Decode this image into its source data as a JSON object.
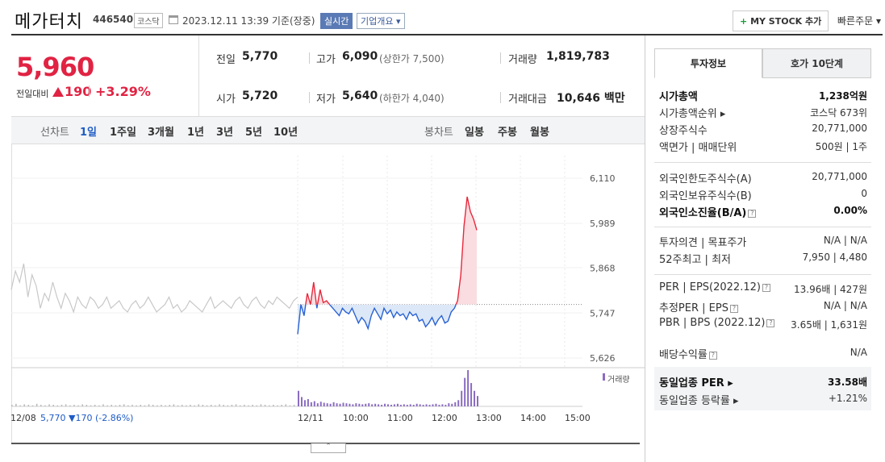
{
  "header": {
    "stock_name": "메가터치",
    "stock_code": "446540",
    "market": "코스닥",
    "timestamp": "2023.12.11 13:39 기준(장중)",
    "realtime_badge": "실시간",
    "company_info_button": "기업개요 ▾",
    "mystock_plus": "+",
    "mystock_button": "MY STOCK 추가",
    "quick_order_button": "빠른주문 ▾"
  },
  "price": {
    "current": "5,960",
    "change_label": "전일대비",
    "change_value": "190",
    "change_pct": "+3.29%"
  },
  "stats": {
    "prev_close_label": "전일",
    "prev_close": "5,770",
    "open_label": "시가",
    "open": "5,720",
    "high_label": "고가",
    "high": "6,090",
    "upper_limit": "(상한가 7,500)",
    "low_label": "저가",
    "low": "5,640",
    "lower_limit": "(하한가 4,040)",
    "volume_label": "거래량",
    "volume": "1,819,783",
    "amount_label": "거래대금",
    "amount": "10,646 백만"
  },
  "period_bar": {
    "line_label": "선차트",
    "line_periods": [
      "1일",
      "1주일",
      "3개월",
      "1년",
      "3년",
      "5년",
      "10년"
    ],
    "active_period": "1일",
    "candle_label": "봉차트",
    "candle_periods": [
      "일봉",
      "주봉",
      "월봉"
    ]
  },
  "chart_data": {
    "type": "line",
    "y_ticks": [
      "6,110",
      "5,989",
      "5,868",
      "5,747",
      "5,626"
    ],
    "ylim": [
      5626,
      6110
    ],
    "baseline": 5770,
    "x_ticks": [
      "12/11",
      "10:00",
      "11:00",
      "12:00",
      "13:00",
      "14:00",
      "15:00"
    ],
    "prev_day_label": "12/08",
    "prev_day_close": "5,770",
    "prev_day_change": "▼170 (-2.86%)",
    "volume_legend": "거래량",
    "colors": {
      "up": "#e8283c",
      "down": "#2a62d4",
      "prev": "#c8c8c8",
      "volume_prev": "#b8b8b8",
      "volume_today": "#8a6cc2",
      "fill_down": "#dce8f7",
      "fill_up": "#f9dde0"
    },
    "series": [
      {
        "values_prev_day": [
          5810,
          5860,
          5830,
          5880,
          5790,
          5850,
          5820,
          5760,
          5800,
          5780,
          5830,
          5790,
          5760,
          5800,
          5780,
          5750,
          5790,
          5770,
          5760,
          5790,
          5780,
          5760,
          5770,
          5790,
          5760,
          5770,
          5780,
          5760,
          5750,
          5770,
          5780,
          5760,
          5770,
          5790,
          5770,
          5750,
          5760,
          5770,
          5790,
          5760,
          5770,
          5750,
          5760,
          5780,
          5770,
          5760,
          5750,
          5770,
          5790,
          5760,
          5770,
          5780,
          5770,
          5760,
          5780,
          5790,
          5770,
          5760,
          5780,
          5790,
          5770,
          5760,
          5780,
          5770,
          5790,
          5780,
          5770,
          5760,
          5780,
          5790
        ],
        "values_today": [
          5690,
          5770,
          5740,
          5800,
          5770,
          5830,
          5760,
          5810,
          5775,
          5780,
          5770,
          5760,
          5750,
          5740,
          5760,
          5750,
          5745,
          5760,
          5740,
          5720,
          5735,
          5725,
          5705,
          5740,
          5760,
          5745,
          5730,
          5760,
          5745,
          5755,
          5735,
          5750,
          5740,
          5745,
          5730,
          5750,
          5740,
          5745,
          5725,
          5730,
          5710,
          5720,
          5735,
          5715,
          5730,
          5740,
          5720,
          5725,
          5750,
          5760,
          5780,
          5850,
          5980,
          6060,
          6020,
          6000,
          5970
        ]
      }
    ],
    "volume_prev_day": [
      3,
      5,
      2,
      4,
      3,
      2,
      5,
      3,
      2,
      4,
      3,
      2,
      3,
      4,
      2,
      3,
      2,
      4,
      3,
      2,
      3,
      2,
      4,
      2,
      3,
      2,
      3,
      4,
      2,
      3,
      2,
      3,
      2,
      4,
      3,
      2,
      3,
      2,
      3,
      4,
      2,
      3,
      2,
      3,
      2,
      4,
      3,
      2,
      3,
      2,
      4,
      3,
      2,
      3,
      4,
      2,
      3,
      2,
      3,
      2,
      4,
      3,
      2,
      3,
      2,
      3,
      4,
      2,
      3,
      2
    ],
    "volume_today": [
      30,
      18,
      12,
      14,
      8,
      10,
      6,
      9,
      7,
      6,
      5,
      8,
      6,
      5,
      7,
      6,
      5,
      4,
      6,
      5,
      4,
      5,
      6,
      4,
      5,
      4,
      3,
      5,
      4,
      3,
      4,
      5,
      3,
      4,
      3,
      4,
      3,
      5,
      4,
      3,
      4,
      3,
      4,
      5,
      3,
      4,
      3,
      6,
      5,
      8,
      12,
      30,
      55,
      70,
      45,
      30,
      20
    ]
  },
  "right_panel": {
    "tab_investment": "투자정보",
    "tab_orderbook": "호가 10단계",
    "rows_1": [
      {
        "label": "시가총액",
        "value": "1,238억원",
        "bold": true
      },
      {
        "label": "시가총액순위 ▸",
        "value": "코스닥 673위"
      },
      {
        "label": "상장주식수",
        "value": "20,771,000"
      },
      {
        "label": "액면가 | 매매단위",
        "value": "500원 | 1주"
      }
    ],
    "rows_2": [
      {
        "label": "외국인한도주식수(A)",
        "value": "20,771,000"
      },
      {
        "label": "외국인보유주식수(B)",
        "value": "0"
      },
      {
        "label": "외국인소진율(B/A)",
        "value": "0.00%",
        "bold": true
      }
    ],
    "rows_3": [
      {
        "label": "투자의견 | 목표주가",
        "value": "N/A | N/A"
      },
      {
        "label": "52주최고 | 최저",
        "value": "7,950 | 4,480"
      }
    ],
    "rows_4": [
      {
        "label": "PER | EPS(2022.12)",
        "value": "13.96배 | 427원"
      },
      {
        "label": "추정PER | EPS",
        "value": "N/A | N/A"
      },
      {
        "label": "PBR | BPS (2022.12)",
        "value": "3.65배 | 1,631원"
      },
      {
        "label": "배당수익률",
        "value": "N/A"
      }
    ],
    "peer_per_label": "동일업종 PER ▸",
    "peer_per_value": "33.58배",
    "peer_rate_label": "동일업종 등락률 ▸",
    "peer_rate_value": "+1.21%",
    "info_icon": "?"
  }
}
